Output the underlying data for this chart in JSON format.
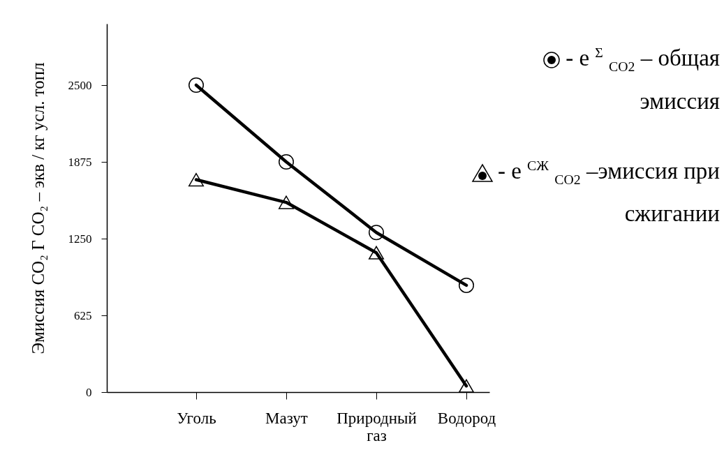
{
  "chart_data": {
    "type": "line",
    "ylabel": "Эмиссия CO₂ Г CO₂ – экв / кг усл. топл",
    "categories": [
      "Уголь",
      "Мазут",
      "Природный газ",
      "Водород"
    ],
    "series": [
      {
        "name": "- e $^{Σ}$ $_{CO2}$ – общая эмиссия",
        "color": "#000000",
        "marker": "circle",
        "values": [
          2500,
          1875,
          1300,
          870
        ]
      },
      {
        "name": "- e $^{СЖ}$ $_{CO2}$ –эмиссия при сжигании",
        "color": "#000000",
        "marker": "triangle",
        "values": [
          1730,
          1545,
          1135,
          50
        ]
      }
    ],
    "ylim": [
      0,
      3000
    ],
    "yticks": [
      0,
      625,
      1250,
      1875,
      2500
    ],
    "grid": false,
    "legend": "top right",
    "line_style": "solid"
  }
}
